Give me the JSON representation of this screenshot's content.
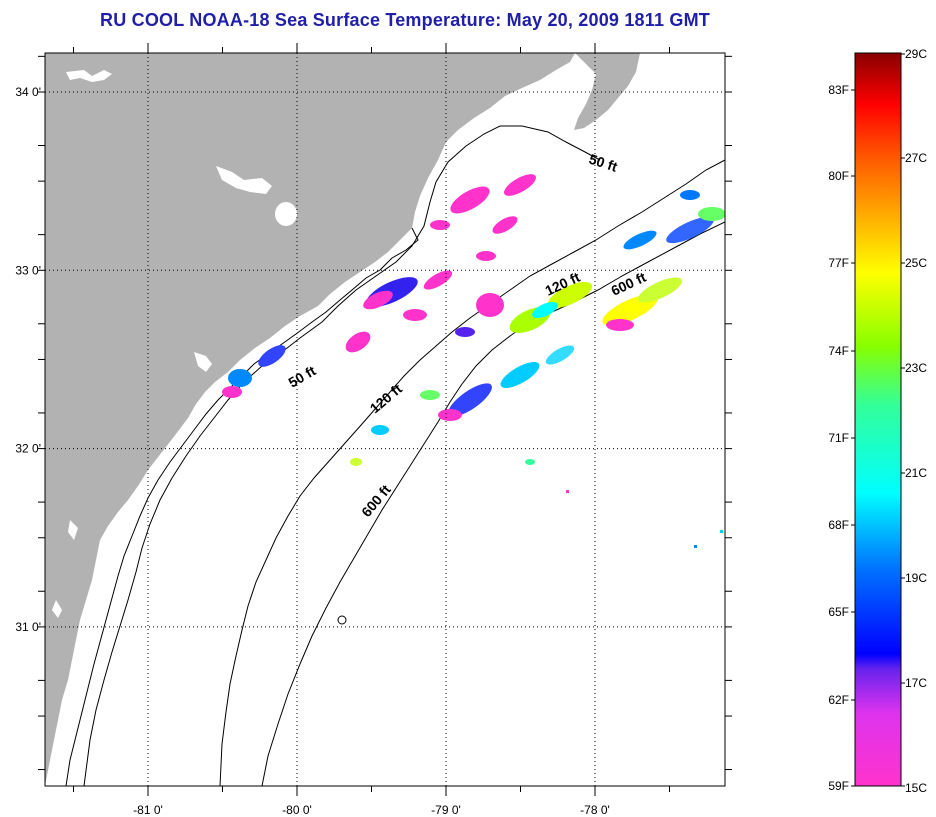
{
  "title": "RU COOL  NOAA-18  Sea Surface Temperature:  May 20, 2009 1811 GMT",
  "map": {
    "x_ticks": [
      {
        "lon": -81,
        "label": "-81 0'"
      },
      {
        "lon": -80,
        "label": "-80 0'"
      },
      {
        "lon": -79,
        "label": "-79 0'"
      },
      {
        "lon": -78,
        "label": "-78 0'"
      }
    ],
    "y_ticks": [
      {
        "lat": 34,
        "label": "34 0'"
      },
      {
        "lat": 33,
        "label": "33 0'"
      },
      {
        "lat": 32,
        "label": "32 0'"
      },
      {
        "lat": 31,
        "label": "31 0'"
      }
    ],
    "contour_labels": [
      {
        "id": "c50-north",
        "text": "50 ft"
      },
      {
        "id": "c50-south",
        "text": "50 ft"
      },
      {
        "id": "c120-north",
        "text": "120 ft"
      },
      {
        "id": "c120-south",
        "text": "120 ft"
      },
      {
        "id": "c600-north",
        "text": "600 ft"
      },
      {
        "id": "c600-south",
        "text": "600 ft"
      }
    ],
    "colors": {
      "land": "#b2b2b2",
      "ocean": "#ffffff",
      "grid": "#000000"
    }
  },
  "colorbar": {
    "fahrenheit_labels": [
      "83F",
      "80F",
      "77F",
      "74F",
      "71F",
      "68F",
      "65F",
      "62F",
      "59F"
    ],
    "celsius_labels": [
      "29C",
      "27C",
      "25C",
      "23C",
      "21C",
      "19C",
      "17C",
      "15C"
    ],
    "colors": [
      "#ff33cc",
      "#cc33ff",
      "#5522ee",
      "#0000ff",
      "#0088ff",
      "#00ffff",
      "#33ff99",
      "#88ff00",
      "#ffff00",
      "#ffaa00",
      "#ff5500",
      "#ff0000",
      "#880000"
    ]
  }
}
